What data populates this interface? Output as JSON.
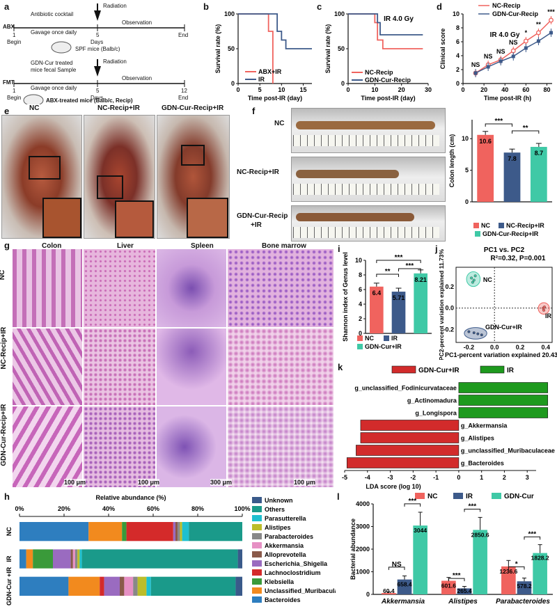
{
  "panel_letters": {
    "a": "a",
    "b": "b",
    "c": "c",
    "d": "d",
    "e": "e",
    "f": "f",
    "g": "g",
    "h": "h",
    "i": "i",
    "j": "j",
    "k": "k",
    "l": "l"
  },
  "panel_a": {
    "abx": {
      "tag": "ABX",
      "l1": "Antibiotic cocktail",
      "l2": "Gavage once daily",
      "radiation": "Radiation",
      "observation": "Observation",
      "t1": "1",
      "t5": "5",
      "t_end": "End",
      "begin": "Begin",
      "days": "Days",
      "mice": "SPF mice (Balb/c)"
    },
    "fmt": {
      "tag": "FMT",
      "l1": "GDN-Cur treated",
      "l1b": "mice fecal Sample",
      "l2": "Gavage once daily",
      "radiation": "Radiation",
      "observation": "Observation",
      "t1": "1",
      "t5": "5",
      "t12": "12",
      "t_end": "End",
      "begin": "Begin",
      "days": "Days",
      "mice": "ABX-treated mice (Balb/c, Recip)"
    }
  },
  "panel_e": {
    "labels": [
      "NC",
      "NC-Recip+IR",
      "GDN-Cur-Recip+IR"
    ]
  },
  "panel_f": {
    "rows": [
      "NC",
      "NC-Recip+IR",
      "GDN-Cur-Recip",
      "+IR"
    ]
  },
  "panel_g": {
    "cols": [
      "Colon",
      "Liver",
      "Spleen",
      "Bone marrow"
    ],
    "rows": [
      "NC",
      "NC-Recip+IR",
      "GDN-Cur-Recip+IR"
    ],
    "scales": [
      "100 μm",
      "100 μm",
      "300 μm",
      "100 μm"
    ]
  },
  "chart_data": [
    {
      "id": "b",
      "type": "line",
      "xlabel": "Time post-IR (day)",
      "ylabel": "Survival rate (%)",
      "xlim": [
        0,
        17
      ],
      "ylim": [
        0,
        100
      ],
      "xticks": [
        "0",
        "5",
        "10",
        "15"
      ],
      "yticks": [
        "0",
        "50",
        "100"
      ],
      "series": [
        {
          "name": "ABX+IR",
          "color": "#f0635e",
          "steps": [
            [
              0,
              100
            ],
            [
              7,
              100
            ],
            [
              7,
              75
            ],
            [
              8,
              75
            ],
            [
              8,
              0
            ]
          ]
        },
        {
          "name": "IR",
          "color": "#3d5a8a",
          "steps": [
            [
              0,
              100
            ],
            [
              9,
              100
            ],
            [
              9,
              75
            ],
            [
              10,
              75
            ],
            [
              10,
              62.5
            ],
            [
              11,
              62.5
            ],
            [
              11,
              50
            ],
            [
              17,
              50
            ]
          ]
        }
      ]
    },
    {
      "id": "c",
      "type": "line",
      "title": "IR 4.0 Gy",
      "xlabel": "Time post-IR (day)",
      "ylabel": "Survival rate (%)",
      "xlim": [
        0,
        30
      ],
      "ylim": [
        0,
        100
      ],
      "xticks": [
        "0",
        "10",
        "20",
        "30"
      ],
      "yticks": [
        "0",
        "50",
        "100"
      ],
      "series": [
        {
          "name": "NC-Recip",
          "color": "#f0635e",
          "steps": [
            [
              0,
              100
            ],
            [
              10,
              100
            ],
            [
              10,
              87.5
            ],
            [
              11,
              87.5
            ],
            [
              11,
              62.5
            ],
            [
              13,
              62.5
            ],
            [
              13,
              50
            ],
            [
              28,
              50
            ]
          ]
        },
        {
          "name": "GDN-Cur-Recip",
          "color": "#3d5a8a",
          "steps": [
            [
              0,
              100
            ],
            [
              11,
              100
            ],
            [
              11,
              87.5
            ],
            [
              12,
              87.5
            ],
            [
              12,
              70
            ],
            [
              28,
              70
            ]
          ]
        }
      ]
    },
    {
      "id": "d",
      "type": "line",
      "title": "IR 4.0 Gy",
      "xlabel": "Time post-IR (h)",
      "ylabel": "Clinical score",
      "xlim": [
        0,
        85
      ],
      "ylim": [
        0,
        10
      ],
      "xticks": [
        "0",
        "20",
        "40",
        "60",
        "80"
      ],
      "yticks": [
        "0",
        "2",
        "4",
        "6",
        "8",
        "10"
      ],
      "x": [
        12,
        24,
        36,
        48,
        60,
        72,
        84
      ],
      "series": [
        {
          "name": "NC-Recip",
          "color": "#f0635e",
          "values": [
            1.5,
            2.7,
            3.4,
            4.7,
            6.1,
            7.3,
            9.1
          ]
        },
        {
          "name": "GDN-Cur-Recip",
          "color": "#3d5a8a",
          "values": [
            1.5,
            2.4,
            3.2,
            3.9,
            5.1,
            6.1,
            7.3
          ]
        }
      ],
      "sig": [
        "NS",
        "NS",
        "NS",
        "NS",
        "*",
        "**",
        "***"
      ]
    },
    {
      "id": "f",
      "type": "bar",
      "ylabel": "Colon length (cm)",
      "ylim": [
        0,
        13
      ],
      "yticks": [
        "0",
        "5",
        "10"
      ],
      "categories": [
        "NC",
        "NC-Recip+IR",
        "GDN-Cur-Recip+IR"
      ],
      "values": [
        10.6,
        7.8,
        8.7
      ],
      "labels": [
        "10.6",
        "7.8",
        "8.7"
      ],
      "colors": [
        "#f0635e",
        "#3d5a8a",
        "#3fc9a6"
      ],
      "sig": [
        "***",
        "**"
      ]
    },
    {
      "id": "i",
      "type": "bar",
      "ylabel": "Shannon index of Genus level",
      "ylim": [
        0,
        10
      ],
      "yticks": [
        "0",
        "2",
        "4",
        "6",
        "8",
        "10"
      ],
      "categories": [
        "NC",
        "IR",
        "GDN-Cur+IR"
      ],
      "values": [
        6.4,
        5.71,
        8.21
      ],
      "labels": [
        "6.4",
        "5.71",
        "8.21"
      ],
      "colors": [
        "#f0635e",
        "#3d5a8a",
        "#3fc9a6"
      ],
      "sig": [
        "**",
        "***",
        "***"
      ]
    },
    {
      "id": "j",
      "type": "scatter",
      "title": "PC1 vs. PC2",
      "subtitle": "R²=0.32, P=0.001",
      "xlabel": "PC1-percent variation explained 20.43%",
      "ylabel": "PC2-percent variation explained 11.73%",
      "xlim": [
        -0.3,
        0.45
      ],
      "ylim": [
        -0.32,
        0.38
      ],
      "xticks": [
        "-0.2",
        "0.0",
        "0.2",
        "0.4"
      ],
      "yticks": [
        "-0.2",
        "0.0",
        "0.2"
      ],
      "series": [
        {
          "name": "NC",
          "color": "#3fc9a6",
          "points": [
            [
              -0.18,
              0.28
            ],
            [
              -0.16,
              0.26
            ],
            [
              -0.15,
              0.3
            ],
            [
              -0.17,
              0.24
            ]
          ]
        },
        {
          "name": "IR",
          "color": "#f0635e",
          "points": [
            [
              0.38,
              0.0
            ],
            [
              0.39,
              0.01
            ],
            [
              0.385,
              -0.02
            ]
          ]
        },
        {
          "name": "GDN-Cur+IR",
          "color": "#3d5a8a",
          "points": [
            [
              -0.2,
              -0.22
            ],
            [
              -0.16,
              -0.23
            ],
            [
              -0.13,
              -0.24
            ],
            [
              -0.1,
              -0.25
            ]
          ]
        }
      ]
    },
    {
      "id": "k",
      "type": "bar",
      "orientation": "horizontal",
      "xlabel": "LDA score (log 10)",
      "xlim": [
        -5,
        4
      ],
      "xticks": [
        "-5",
        "-4",
        "-3",
        "-2",
        "-1",
        "0",
        "1",
        "2",
        "3"
      ],
      "legend": [
        {
          "name": "GDN-Cur+IR",
          "color": "#d22b2b"
        },
        {
          "name": "IR",
          "color": "#1e9a1e"
        }
      ],
      "categories": [
        "g_unclassified_Fodinicurvataceae",
        "g_Actinomadura",
        "g_Longispora",
        "g_Akkermansia",
        "g_Alistipes",
        "g_unclassified_Muribaculaceae",
        "g_Bacteroides"
      ],
      "values": [
        3.9,
        3.9,
        3.9,
        -4.3,
        -4.3,
        -4.5,
        -4.9
      ]
    },
    {
      "id": "h",
      "type": "bar",
      "orientation": "horizontal-stacked",
      "title": "Relative abundance (%)",
      "xticks": [
        "0%",
        "20%",
        "40%",
        "60%",
        "80%",
        "100%"
      ],
      "categories": [
        "NC",
        "IR",
        "GDN-Cur +IR"
      ],
      "series": [
        {
          "name": "Bacteroides",
          "color": "#2e7ebf",
          "values": [
            31,
            3,
            22
          ]
        },
        {
          "name": "Unclassified_Muribaculaceae",
          "color": "#f28a1e",
          "values": [
            15,
            3,
            14
          ]
        },
        {
          "name": "Klebsiella",
          "color": "#3a9a3a",
          "values": [
            2,
            9,
            0
          ]
        },
        {
          "name": "Lachnoclostridium",
          "color": "#d42a2a",
          "values": [
            21,
            0,
            2
          ]
        },
        {
          "name": "Escherichia_Shigella",
          "color": "#9a6bc0",
          "values": [
            1,
            8,
            7
          ]
        },
        {
          "name": "Alloprevotella",
          "color": "#8a5a4a",
          "values": [
            1,
            1,
            2
          ]
        },
        {
          "name": "Akkermansia",
          "color": "#e690c4",
          "values": [
            0,
            1,
            4
          ]
        },
        {
          "name": "Parabacteroides",
          "color": "#888888",
          "values": [
            1,
            1,
            2
          ]
        },
        {
          "name": "Alistipes",
          "color": "#bcbd2a",
          "values": [
            1,
            1,
            4
          ]
        },
        {
          "name": "Parasutterella",
          "color": "#1ec0cf",
          "values": [
            3,
            1,
            2
          ]
        },
        {
          "name": "Others",
          "color": "#1a9a8a",
          "values": [
            24,
            70,
            38
          ]
        },
        {
          "name": "Unknown",
          "color": "#3a5a8a",
          "values": [
            0,
            2,
            3
          ]
        }
      ]
    },
    {
      "id": "l",
      "type": "bar",
      "ylabel": "Bacterial abundance",
      "ylim": [
        0,
        4000
      ],
      "yticks": [
        "0",
        "1000",
        "2000",
        "3000",
        "4000"
      ],
      "categories": [
        "Akkermansia",
        "Alistipes",
        "Parabacteroides"
      ],
      "series": [
        {
          "name": "NC",
          "color": "#f0635e",
          "values": [
            60.4,
            601.6,
            1236.6
          ]
        },
        {
          "name": "IR",
          "color": "#3d5a8a",
          "values": [
            658.4,
            265.4,
            578.2
          ]
        },
        {
          "name": "GDN-Cur",
          "color": "#3fc9a6",
          "values": [
            3044,
            2850.6,
            1828.2
          ]
        }
      ],
      "labels": [
        [
          "60.4",
          "658.4",
          "3044"
        ],
        [
          "601.6",
          "265.4",
          "2850.6"
        ],
        [
          "1236.6",
          "578.2",
          "1828.2"
        ]
      ],
      "sig": [
        [
          "NS",
          "***"
        ],
        [
          "***",
          "***"
        ],
        [
          "*",
          "***"
        ]
      ]
    }
  ]
}
